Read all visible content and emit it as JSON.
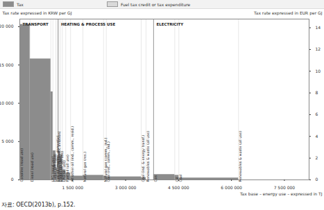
{
  "chart_data": {
    "type": "bar",
    "legend": "top",
    "grid": false,
    "xlabel": "Tax base – energy use – expressed in TJ",
    "ylabel": "Tax rate expressed in KRW per GJ",
    "y2label": "Tax rate expressed in EUR per GJ",
    "caption": "자료: OECD(2013b), p.152.",
    "categories": [
      "Gasoline (road use)",
      "Diesel (road use)",
      "LPG (road use)",
      "Diesel (off-road)",
      "Fuel oil (marine, domestic)",
      "Kerosene (domestic aviation)",
      "Diesel (all use)",
      "Kerosene (all use)",
      "LPG (all use)",
      "Fuel oil (all use)",
      "All other oil (ind., comm., resid.)",
      "Natural gas (res.)",
      "Natural gas (comm., ind.)",
      "Coal (res., comm., ind.)",
      "Coal (ind. & energy transf.)",
      "Renewables & waste (all use)",
      "Gas",
      "Oil",
      "Coal",
      "Renewables & waste (all use)"
    ],
    "sector": [
      "TRANSPORT",
      "TRANSPORT",
      "TRANSPORT",
      "TRANSPORT",
      "TRANSPORT",
      "TRANSPORT",
      "HEATING & PROCESS USE",
      "HEATING & PROCESS USE",
      "HEATING & PROCESS USE",
      "HEATING & PROCESS USE",
      "HEATING & PROCESS USE",
      "HEATING & PROCESS USE",
      "HEATING & PROCESS USE",
      "HEATING & PROCESS USE",
      "HEATING & PROCESS USE",
      "HEATING & PROCESS USE",
      "ELECTRICITY",
      "ELECTRICITY",
      "ELECTRICITY",
      "ELECTRICITY"
    ],
    "widths": [
      290000,
      590000,
      60000,
      80000,
      40000,
      30000,
      58000,
      58000,
      97000,
      136000,
      350000,
      585000,
      78000,
      990000,
      136000,
      215000,
      600000,
      117000,
      1690000,
      1990000
    ],
    "series": [
      {
        "name": "Tax",
        "color": "#8c8c8c",
        "values": [
          20300,
          15800,
          11500,
          3800,
          1500,
          3000,
          3700,
          3300,
          1200,
          900,
          500,
          600,
          500,
          400,
          300,
          0,
          700,
          600,
          250,
          0
        ]
      },
      {
        "name": "Fuel tax credit or tax expenditure",
        "color": "#d9d9d9",
        "values": [
          0,
          0,
          0,
          0,
          0,
          0,
          0,
          0,
          0,
          0,
          0,
          0,
          0,
          0,
          0,
          0,
          0,
          0,
          0,
          0
        ]
      }
    ],
    "xlim": [
      0,
      8200000
    ],
    "xticks": [
      {
        "value": 1500000,
        "label": "1 500 000"
      },
      {
        "value": 3000000,
        "label": "3 000 000"
      },
      {
        "value": 4500000,
        "label": "4 500 000"
      },
      {
        "value": 6000000,
        "label": "6 000 000"
      },
      {
        "value": 7500000,
        "label": "7 500 000"
      }
    ],
    "ylim": [
      0,
      21000
    ],
    "yticks": [
      0,
      {
        "value": 5000,
        "label": "5 000"
      },
      {
        "value": 10000,
        "label": "10 000"
      },
      {
        "value": 15000,
        "label": "15 000"
      },
      {
        "value": 20000,
        "label": "20 000"
      }
    ],
    "y2lim": [
      0,
      14.8
    ],
    "y2ticks": [
      0,
      2,
      4,
      6,
      8,
      10,
      12,
      14
    ]
  }
}
